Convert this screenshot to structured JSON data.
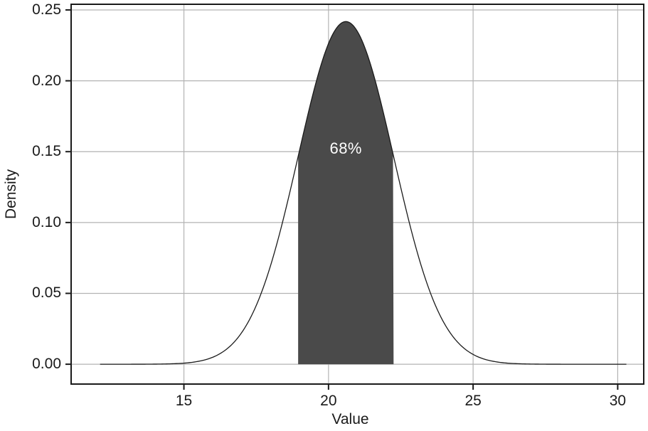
{
  "chart_data": {
    "type": "area",
    "title": "",
    "xlabel": "Value",
    "ylabel": "Density",
    "annotation": "68%",
    "distribution": {
      "kind": "normal",
      "mean": 20.6,
      "sd": 1.65,
      "peak_density": 0.242
    },
    "curve_x_range": [
      12.1,
      30.3
    ],
    "shaded_region": {
      "from": 18.95,
      "to": 22.25,
      "label": "68%",
      "fill": "#4a4a4a"
    },
    "annotation_pos": {
      "x": 20.6,
      "y": 0.152
    },
    "x_ticks": {
      "values": [
        15,
        20,
        25,
        30
      ],
      "labels": [
        "15",
        "20",
        "25",
        "30"
      ]
    },
    "y_ticks": {
      "values": [
        0.0,
        0.05,
        0.1,
        0.15,
        0.2,
        0.25
      ],
      "labels": [
        "0.00",
        "0.05",
        "0.10",
        "0.15",
        "0.20",
        "0.25"
      ]
    },
    "xlim": [
      11.1,
      30.9
    ],
    "ylim": [
      -0.014,
      0.254
    ],
    "grid": true,
    "legend": null,
    "colors": {
      "curve": "#1a1a1a",
      "fill": "#4a4a4a",
      "grid": "#b3b3b3",
      "axis": "#1a1a1a",
      "annotation_text": "#ffffff",
      "background": "#ffffff"
    }
  }
}
